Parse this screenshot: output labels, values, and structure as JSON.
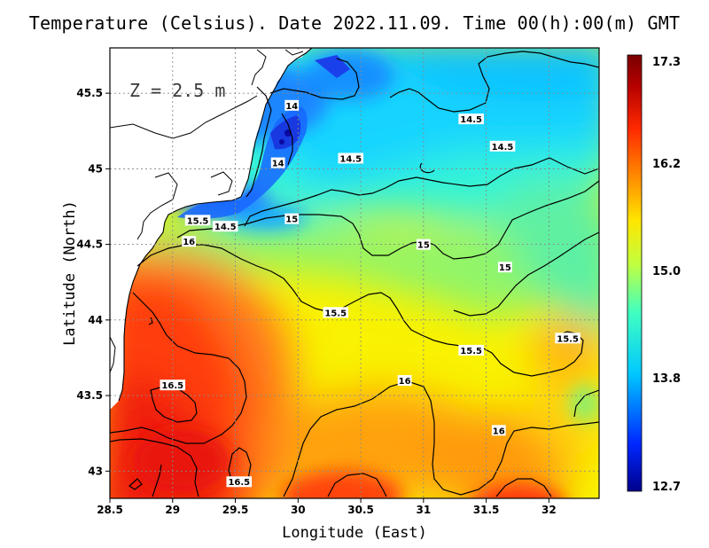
{
  "title": "Temperature (Celsius). Date 2022.11.09. Time 00(h):00(m) GMT",
  "depth_label": "Z = 2.5 m",
  "x_axis": {
    "label": "Longitude (East)",
    "ticks": [
      "28.5",
      "29",
      "29.5",
      "30",
      "30.5",
      "31",
      "31.5",
      "32"
    ]
  },
  "y_axis": {
    "label": "Latitude (North)",
    "ticks": [
      "45.5",
      "45",
      "44.5",
      "44",
      "43.5",
      "43"
    ]
  },
  "colorbar": {
    "min_label": "12.7",
    "max_label": "17.3",
    "tick_labels": [
      "16.2",
      "15.0",
      "13.8"
    ],
    "colors": [
      "#00008c",
      "#0028ff",
      "#00c8ff",
      "#40ffc0",
      "#c0ff40",
      "#ffe600",
      "#ff8c00",
      "#ff2a00",
      "#b40000",
      "#7a0000"
    ]
  },
  "contour_labels": [
    {
      "text": "14",
      "lon": 29.95,
      "lat": 45.42
    },
    {
      "text": "14.5",
      "lon": 31.38,
      "lat": 45.33
    },
    {
      "text": "14.5",
      "lon": 31.63,
      "lat": 45.15
    },
    {
      "text": "14.5",
      "lon": 30.42,
      "lat": 45.07
    },
    {
      "text": "14",
      "lon": 29.84,
      "lat": 45.04
    },
    {
      "text": "15.5",
      "lon": 29.2,
      "lat": 44.66
    },
    {
      "text": "14.5",
      "lon": 29.42,
      "lat": 44.62
    },
    {
      "text": "15",
      "lon": 29.95,
      "lat": 44.67
    },
    {
      "text": "15",
      "lon": 31.0,
      "lat": 44.5
    },
    {
      "text": "15",
      "lon": 31.65,
      "lat": 44.35
    },
    {
      "text": "16",
      "lon": 29.13,
      "lat": 44.52
    },
    {
      "text": "15.5",
      "lon": 30.3,
      "lat": 44.05
    },
    {
      "text": "15.5",
      "lon": 31.38,
      "lat": 43.8
    },
    {
      "text": "15.5",
      "lon": 32.15,
      "lat": 43.88
    },
    {
      "text": "16",
      "lon": 30.85,
      "lat": 43.6
    },
    {
      "text": "16.5",
      "lon": 29.0,
      "lat": 43.57
    },
    {
      "text": "16",
      "lon": 31.6,
      "lat": 43.27
    },
    {
      "text": "16.5",
      "lon": 29.53,
      "lat": 42.93
    }
  ]
}
